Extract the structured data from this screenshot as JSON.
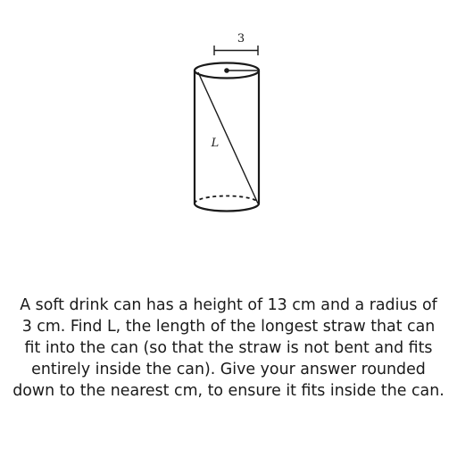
{
  "diagram": {
    "radius_label": "3",
    "length_label": "L"
  },
  "question": {
    "text": "A soft drink can has a height of 13 cm and a radius of 3 cm. Find L, the length of the longest straw that can fit into the can (so that the straw is not bent and fits entirely inside the can). Give your answer rounded down to the nearest cm, to ensure it fits inside the can."
  }
}
